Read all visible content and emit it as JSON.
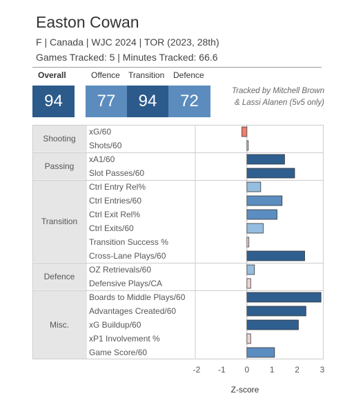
{
  "header": {
    "player_name": "Easton Cowan",
    "info_line": "F | Canada | WJC 2024 | TOR (2023, 28th)",
    "tracked_line": "Games Tracked: 5 | Minutes Tracked: 66.6",
    "credit_line1": "Tracked by Mitchell Brown",
    "credit_line2": "& Lassi Alanen (5v5 only)"
  },
  "ratings": {
    "overall": {
      "label": "Overall",
      "value": "94"
    },
    "offence": {
      "label": "Offence",
      "value": "77"
    },
    "transition": {
      "label": "Transition",
      "value": "94"
    },
    "defence": {
      "label": "Defence",
      "value": "72"
    }
  },
  "colors": {
    "dark_navy": "#2b5a8b",
    "mid_blue": "#5b8cbd",
    "dark_bar": "#2f5f8f",
    "mid_bar": "#5b8dc0",
    "light_bar": "#95bde0",
    "pale_pink": "#f1d3d6",
    "salmon": "#ef7d70",
    "category_bg": "#e6e6e6"
  },
  "chart_data": {
    "type": "bar",
    "orientation": "horizontal",
    "xlabel": "Z-score",
    "xlim": [
      -2,
      3
    ],
    "xticks": [
      "-2",
      "-1",
      "0",
      "1",
      "2",
      "3"
    ],
    "groups": [
      {
        "name": "Shooting",
        "metrics": [
          {
            "label": "xG/60",
            "value": -0.2,
            "color": "salmon"
          },
          {
            "label": "Shots/60",
            "value": 0.05,
            "color": "pale_pink"
          }
        ]
      },
      {
        "name": "Passing",
        "metrics": [
          {
            "label": "xA1/60",
            "value": 1.5,
            "color": "dark_bar"
          },
          {
            "label": "Slot Passes/60",
            "value": 1.9,
            "color": "dark_bar"
          }
        ]
      },
      {
        "name": "Transition",
        "metrics": [
          {
            "label": "Ctrl Entry Rel%",
            "value": 0.55,
            "color": "light_bar"
          },
          {
            "label": "Ctrl Entries/60",
            "value": 1.4,
            "color": "mid_bar"
          },
          {
            "label": "Ctrl Exit Rel%",
            "value": 1.2,
            "color": "mid_bar"
          },
          {
            "label": "Ctrl Exits/60",
            "value": 0.65,
            "color": "light_bar"
          },
          {
            "label": "Transition Success %",
            "value": 0.08,
            "color": "pale_pink"
          },
          {
            "label": "Cross-Lane Plays/60",
            "value": 2.3,
            "color": "dark_bar"
          }
        ]
      },
      {
        "name": "Defence",
        "metrics": [
          {
            "label": "OZ Retrievals/60",
            "value": 0.3,
            "color": "light_bar"
          },
          {
            "label": "Defensive Plays/CA",
            "value": 0.15,
            "color": "pale_pink"
          }
        ]
      },
      {
        "name": "Misc.",
        "metrics": [
          {
            "label": "Boards to Middle Plays/60",
            "value": 2.95,
            "color": "dark_bar"
          },
          {
            "label": "Advantages Created/60",
            "value": 2.35,
            "color": "dark_bar"
          },
          {
            "label": "xG Buildup/60",
            "value": 2.05,
            "color": "dark_bar"
          },
          {
            "label": "xP1 Involvement %",
            "value": 0.15,
            "color": "pale_pink"
          },
          {
            "label": "Game Score/60",
            "value": 1.1,
            "color": "mid_bar"
          }
        ]
      }
    ]
  }
}
